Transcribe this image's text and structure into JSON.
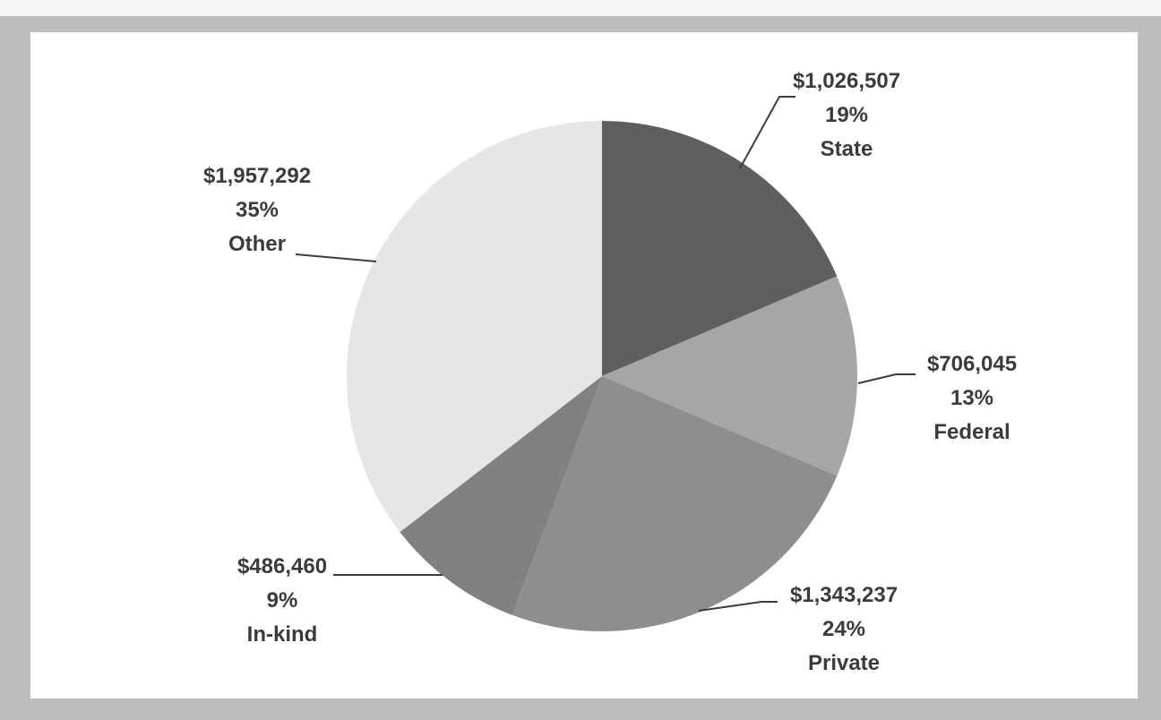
{
  "chart_data": {
    "type": "pie",
    "title": "",
    "start_angle_deg": 0,
    "direction": "clockwise",
    "slices": [
      {
        "label": "State",
        "value": 1026507,
        "value_text": "$1,026,507",
        "percent_text": "19%",
        "color": "#5f5f5f"
      },
      {
        "label": "Federal",
        "value": 706045,
        "value_text": "$706,045",
        "percent_text": "13%",
        "color": "#a6a6a6"
      },
      {
        "label": "Private",
        "value": 1343237,
        "value_text": "$1,343,237",
        "percent_text": "24%",
        "color": "#8e8e8e"
      },
      {
        "label": "In-kind",
        "value": 486460,
        "value_text": "$486,460",
        "percent_text": "9%",
        "color": "#818181"
      },
      {
        "label": "Other",
        "value": 1957292,
        "value_text": "$1,957,292",
        "percent_text": "35%",
        "color": "#e6e6e6"
      }
    ],
    "data_labels": "value, percent, category",
    "legend": "none"
  }
}
